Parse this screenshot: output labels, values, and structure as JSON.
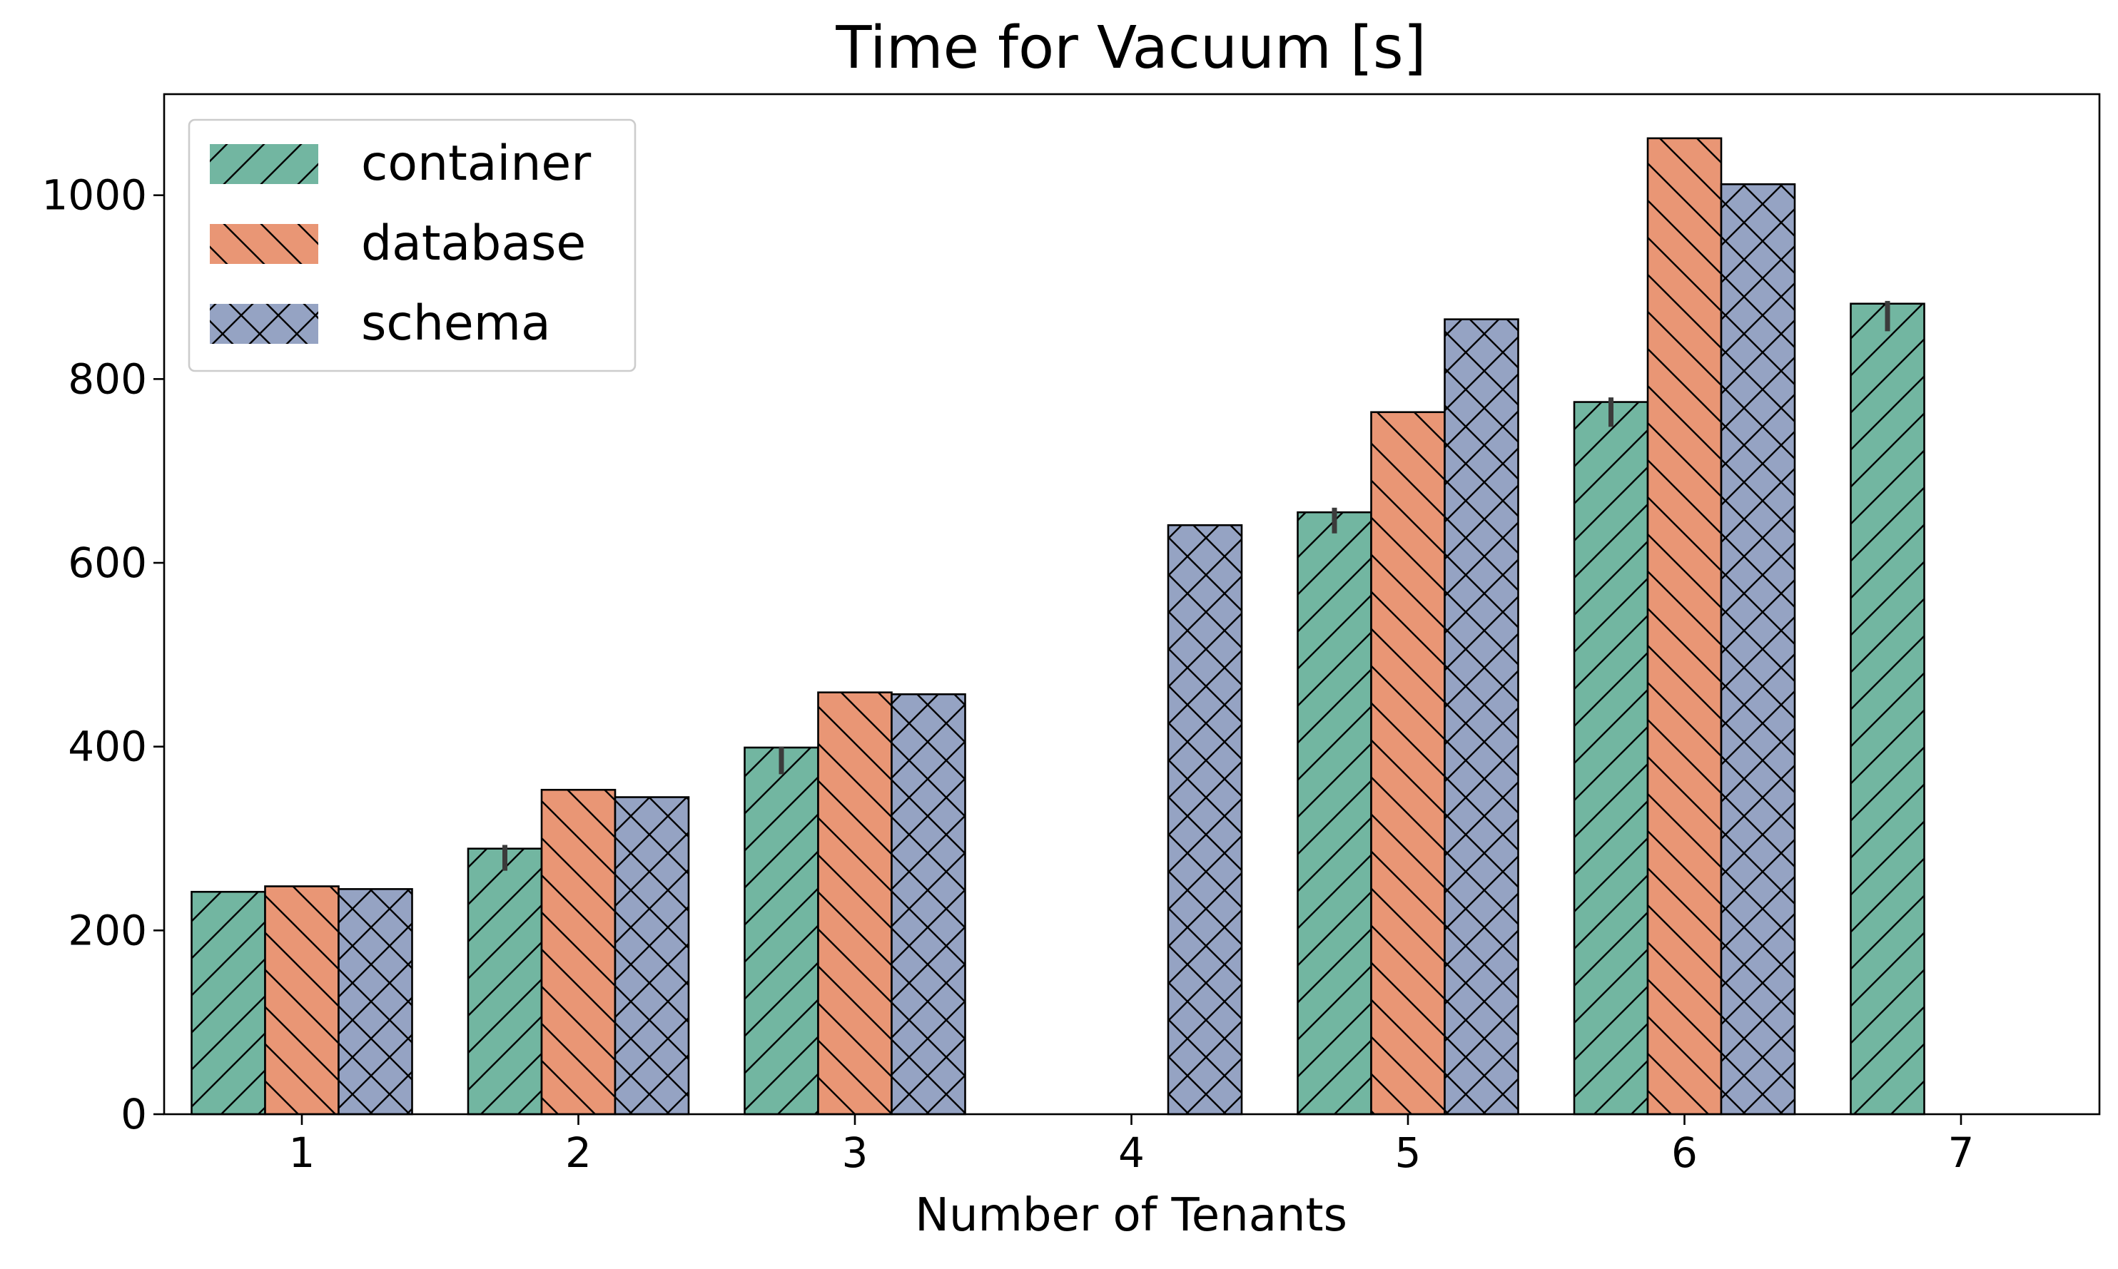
{
  "chart_data": {
    "type": "bar",
    "title": "Time for Vacuum [s]",
    "xlabel": "Number of Tenants",
    "ylabel": "",
    "categories": [
      "1",
      "2",
      "3",
      "4",
      "5",
      "6",
      "7"
    ],
    "ylim": [
      0,
      1110
    ],
    "yticks": [
      0,
      200,
      400,
      600,
      800,
      1000
    ],
    "grid": false,
    "legend_position": "top-left",
    "series": [
      {
        "name": "container",
        "color": "#72b6a1",
        "hatch": "forward-diagonal",
        "values": [
          242,
          289,
          399,
          null,
          655,
          775,
          882
        ],
        "error_low": [
          null,
          265,
          370,
          null,
          632,
          748,
          852
        ],
        "error_high": [
          null,
          293,
          400,
          null,
          660,
          780,
          885
        ]
      },
      {
        "name": "database",
        "color": "#e99675",
        "hatch": "back-diagonal",
        "values": [
          248,
          353,
          459,
          null,
          764,
          1062,
          null
        ],
        "error_low": [
          null,
          null,
          null,
          null,
          null,
          null,
          null
        ],
        "error_high": [
          null,
          null,
          null,
          null,
          null,
          null,
          null
        ]
      },
      {
        "name": "schema",
        "color": "#95a3c3",
        "hatch": "cross",
        "values": [
          245,
          345,
          457,
          641,
          865,
          1012,
          null
        ],
        "error_low": [
          null,
          null,
          null,
          null,
          null,
          null,
          null
        ],
        "error_high": [
          null,
          null,
          null,
          null,
          null,
          null,
          null
        ]
      }
    ]
  }
}
